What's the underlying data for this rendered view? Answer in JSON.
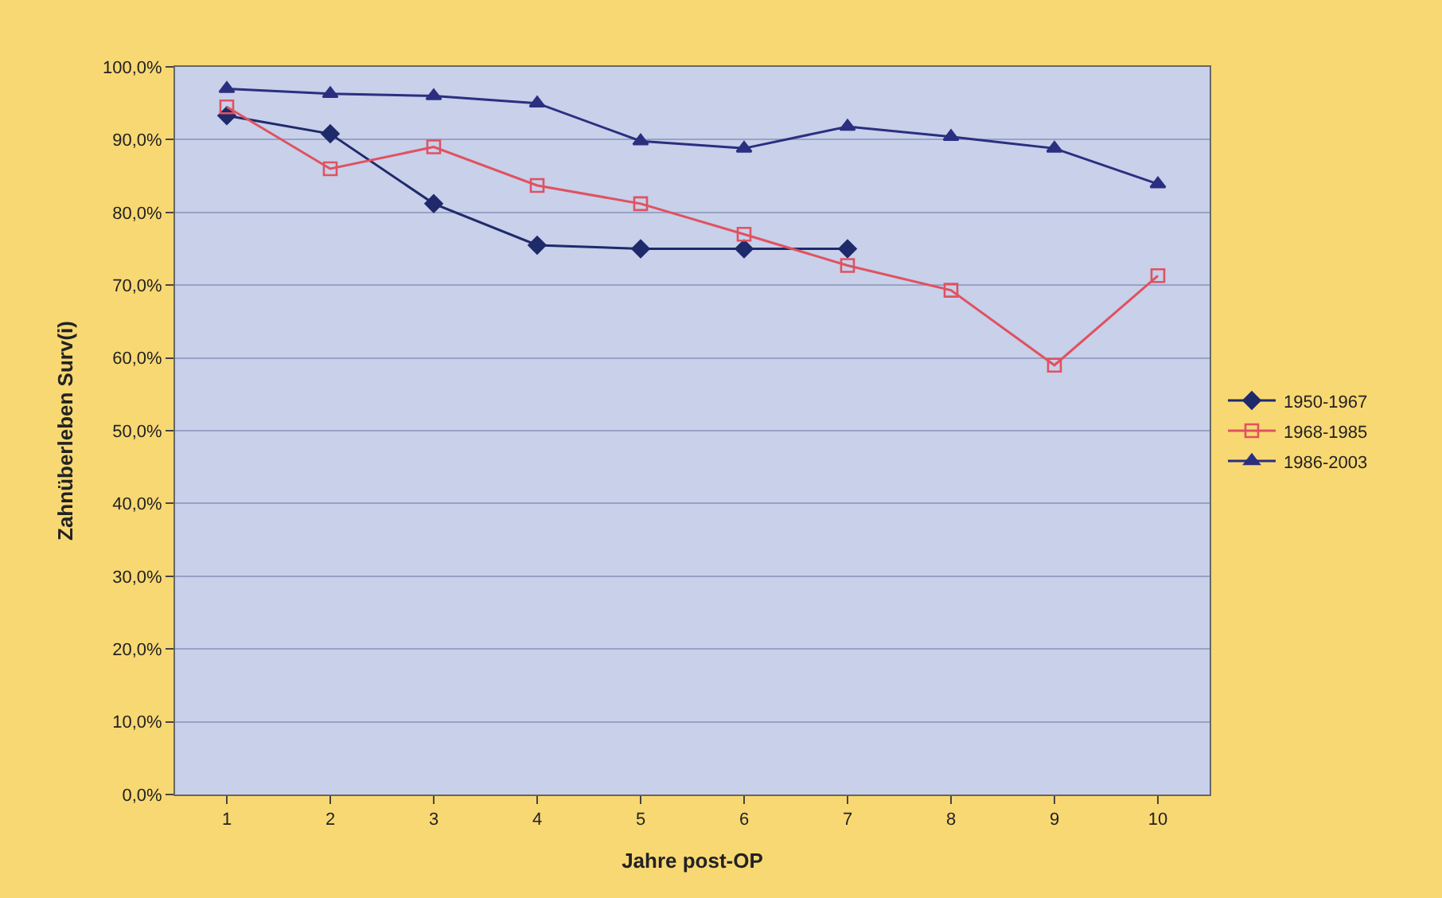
{
  "chart_data": {
    "type": "line",
    "xlabel": "Jahre post-OP",
    "ylabel": "Zahnüberleben Surv(i)",
    "categories": [
      "1",
      "2",
      "3",
      "4",
      "5",
      "6",
      "7",
      "8",
      "9",
      "10"
    ],
    "series": [
      {
        "name": "1950-1967",
        "color": "#1f2a6b",
        "marker": "diamond",
        "values": [
          93.3,
          90.8,
          81.2,
          75.5,
          75.0,
          75.0,
          75.0,
          null,
          null,
          null
        ]
      },
      {
        "name": "1968-1985",
        "color": "#e05260",
        "marker": "square",
        "values": [
          94.5,
          86.0,
          89.0,
          83.7,
          81.2,
          77.0,
          72.7,
          69.3,
          59.0,
          71.3
        ]
      },
      {
        "name": "1986-2003",
        "color": "#2a2f80",
        "marker": "triangle",
        "values": [
          97.0,
          96.3,
          96.0,
          95.0,
          89.8,
          88.8,
          91.8,
          90.4,
          88.8,
          83.9
        ]
      }
    ],
    "ylim": [
      0,
      100
    ],
    "yticks": [
      {
        "value": 0,
        "label": "0,0%"
      },
      {
        "value": 10,
        "label": "10,0%"
      },
      {
        "value": 20,
        "label": "20,0%"
      },
      {
        "value": 30,
        "label": "30,0%"
      },
      {
        "value": 40,
        "label": "40,0%"
      },
      {
        "value": 50,
        "label": "50,0%"
      },
      {
        "value": 60,
        "label": "60,0%"
      },
      {
        "value": 70,
        "label": "70,0%"
      },
      {
        "value": 80,
        "label": "80,0%"
      },
      {
        "value": 90,
        "label": "90,0%"
      },
      {
        "value": 100,
        "label": "100,0%"
      }
    ],
    "grid": "y",
    "legend": "right",
    "line_style": "solid"
  }
}
